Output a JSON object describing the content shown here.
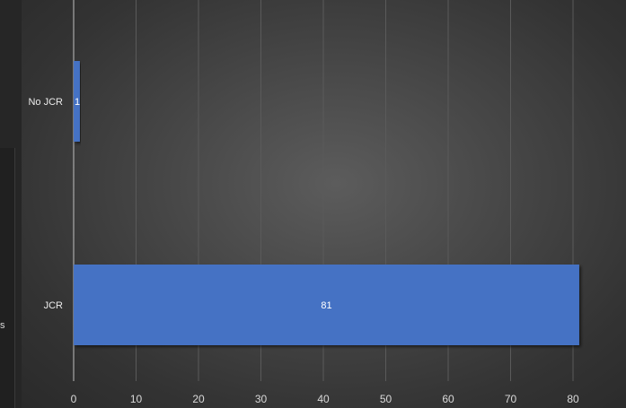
{
  "chart_data": {
    "type": "bar",
    "orientation": "horizontal",
    "categories": [
      "No JCR",
      "JCR"
    ],
    "values": [
      1,
      81
    ],
    "data_labels": [
      "1",
      "81"
    ],
    "x_ticks": [
      0,
      10,
      20,
      30,
      40,
      50,
      60,
      70,
      80
    ],
    "xlim": [
      0,
      90
    ],
    "grid": true,
    "bar_color": "#4472C4",
    "title": "",
    "xlabel": "",
    "ylabel": ""
  },
  "left_panel": {
    "glyph": "s"
  }
}
